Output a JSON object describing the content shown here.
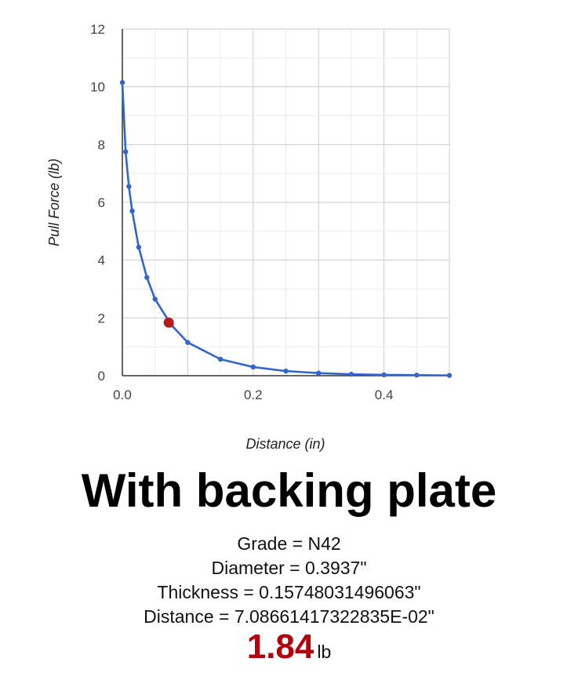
{
  "chart_data": {
    "type": "line",
    "xlabel": "Distance (in)",
    "ylabel": "Pull Force (lb)",
    "xlim": [
      0,
      0.5
    ],
    "ylim": [
      0,
      12
    ],
    "x_ticks": [
      "0.0",
      "0.2",
      "0.4"
    ],
    "y_ticks": [
      "0",
      "2",
      "4",
      "6",
      "8",
      "10",
      "12"
    ],
    "grid": true,
    "line_color": "#3366cc",
    "highlight_color": "#b71c1c",
    "series": [
      {
        "x": [
          0,
          0.005,
          0.01,
          0.015,
          0.025,
          0.0375,
          0.05,
          0.075,
          0.1,
          0.15,
          0.2,
          0.25,
          0.3,
          0.35,
          0.4,
          0.45,
          0.5
        ],
        "y": [
          10.15,
          7.75,
          6.55,
          5.7,
          4.45,
          3.4,
          2.65,
          1.75,
          1.15,
          0.57,
          0.3,
          0.16,
          0.09,
          0.05,
          0.03,
          0.02,
          0.01
        ]
      }
    ],
    "highlight_point": {
      "x": 0.0708661417322835,
      "y": 1.84
    }
  },
  "heading": "With backing plate",
  "details": {
    "grade": "Grade = N42",
    "diameter": "Diameter = 0.3937\"",
    "thickness": "Thickness = 0.15748031496063\"",
    "distance": "Distance = 7.08661417322835E-02\""
  },
  "result": {
    "value": "1.84",
    "unit": "lb"
  }
}
